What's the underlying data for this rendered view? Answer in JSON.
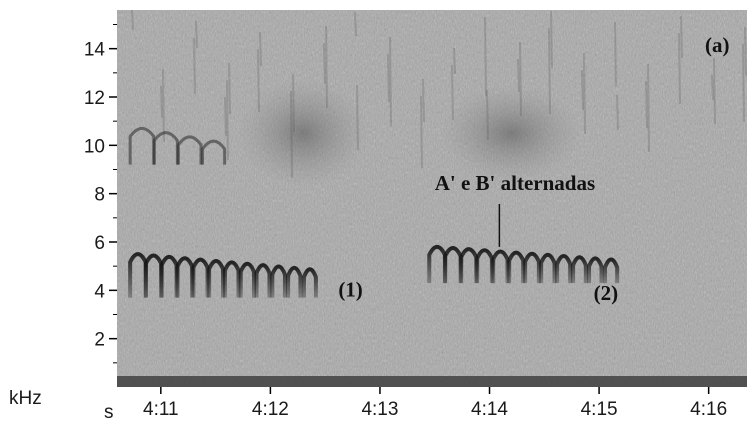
{
  "chart_data": {
    "type": "heatmap",
    "panel_label": "(a)",
    "xlabel": "s",
    "ylabel": "kHz",
    "xlim": [
      250.6,
      256.35
    ],
    "ylim": [
      0,
      15.6
    ],
    "x_ticks": [
      {
        "value": 251,
        "label": "4:11"
      },
      {
        "value": 252,
        "label": "4:12"
      },
      {
        "value": 253,
        "label": "4:13"
      },
      {
        "value": 254,
        "label": "4:14"
      },
      {
        "value": 255,
        "label": "4:15"
      },
      {
        "value": 256,
        "label": "4:16"
      }
    ],
    "y_ticks": [
      2,
      4,
      6,
      8,
      10,
      12,
      14
    ],
    "annotations": [
      {
        "text": "A' e B' alternadas",
        "x": 253.5,
        "y": 8.15,
        "pointer_to": {
          "x": 254.09,
          "y": 5.8
        }
      },
      {
        "text": "(1)",
        "x": 252.62,
        "y": 3.75
      },
      {
        "text": "(2)",
        "x": 254.95,
        "y": 3.6
      }
    ],
    "components": [
      {
        "name": "phrase-1-notes",
        "kind": "dark-arch-series",
        "x_start": 250.72,
        "x_end": 252.45,
        "freq_low": 3.7,
        "freq_high": 5.5,
        "count": 12
      },
      {
        "name": "phrase-1-upper-notes",
        "kind": "light-arch-series",
        "x_start": 250.72,
        "x_end": 251.6,
        "freq_low": 9.2,
        "freq_high": 10.7,
        "count": 4
      },
      {
        "name": "phrase-2-notes",
        "kind": "dark-arch-series",
        "x_start": 253.45,
        "x_end": 255.2,
        "freq_low": 4.3,
        "freq_high": 5.8,
        "count": 12
      },
      {
        "name": "broadband-noise-cloud-1",
        "kind": "noise-blob",
        "x_center": 252.3,
        "freq_center": 10.5,
        "x_width": 1.2,
        "freq_height": 4.5
      },
      {
        "name": "broadband-noise-cloud-2",
        "kind": "noise-blob",
        "x_center": 254.2,
        "freq_center": 10.5,
        "x_width": 1.3,
        "freq_height": 4.0
      }
    ],
    "colors": {
      "background": "#a9a9a9",
      "ink": "#141414",
      "frame": "#ffffff"
    }
  }
}
